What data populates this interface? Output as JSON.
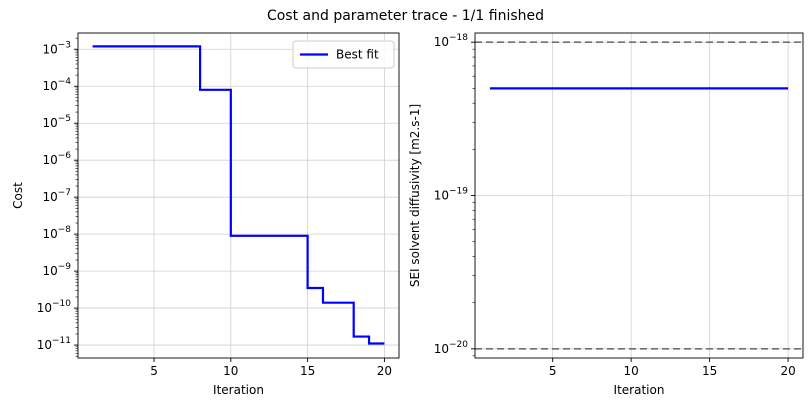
{
  "figure": {
    "title": "Cost and parameter trace - 1/1 finished"
  },
  "chart_data": [
    {
      "type": "line",
      "subtype": "step",
      "title": "",
      "xlabel": "Iteration",
      "ylabel": "Cost",
      "yscale": "log",
      "xlim": [
        0.05,
        20.95
      ],
      "ylim_log10": [
        -11.35,
        -2.56
      ],
      "xticks": [
        5,
        10,
        15,
        20
      ],
      "xtick_labels": [
        "5",
        "10",
        "15",
        "20"
      ],
      "ytick_exponents": [
        -11,
        -10,
        -9,
        -8,
        -7,
        -6,
        -5,
        -4,
        -3
      ],
      "ytick_labels": [
        "10",
        "10",
        "10",
        "10",
        "10",
        "10",
        "10",
        "10",
        "10"
      ],
      "ytick_exp_labels": [
        "−11",
        "−10",
        "−9",
        "−8",
        "−7",
        "−6",
        "−5",
        "−4",
        "−3"
      ],
      "grid": true,
      "legend": {
        "position": "top-right",
        "entries": [
          "Best fit"
        ]
      },
      "series": [
        {
          "name": "Best fit",
          "color": "#0000ff",
          "x": [
            1,
            8,
            10,
            15,
            16,
            18,
            19,
            20
          ],
          "y": [
            0.0012,
            8e-05,
            9e-09,
            3.5e-10,
            1.4e-10,
            1.7e-11,
            1.1e-11,
            1.1e-11
          ]
        }
      ]
    },
    {
      "type": "line",
      "title": "",
      "xlabel": "Iteration",
      "ylabel": "SEI solvent diffusivity [m2.s-1]",
      "yscale": "log",
      "xlim": [
        0.05,
        20.95
      ],
      "ylim_log10": [
        -20.06,
        -17.94
      ],
      "xticks": [
        5,
        10,
        15,
        20
      ],
      "xtick_labels": [
        "5",
        "10",
        "15",
        "20"
      ],
      "ytick_exponents": [
        -20,
        -19,
        -18
      ],
      "ytick_labels": [
        "10",
        "10",
        "10"
      ],
      "ytick_exp_labels": [
        "−20",
        "−19",
        "−18"
      ],
      "grid": true,
      "series": [
        {
          "name": "",
          "color": "#0000ff",
          "x": [
            1,
            20
          ],
          "y": [
            5e-19,
            5e-19
          ]
        }
      ],
      "bounds": {
        "color": "#707070",
        "style": "dashed",
        "values": [
          1e-20,
          1e-18
        ]
      }
    }
  ]
}
